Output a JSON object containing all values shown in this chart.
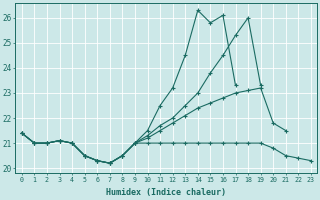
{
  "xlabel": "Humidex (Indice chaleur)",
  "background_color": "#cce8e8",
  "grid_color": "#ffffff",
  "line_color": "#1a6b62",
  "xlim": [
    -0.5,
    23.5
  ],
  "ylim": [
    19.8,
    26.6
  ],
  "xticks": [
    0,
    1,
    2,
    3,
    4,
    5,
    6,
    7,
    8,
    9,
    10,
    11,
    12,
    13,
    14,
    15,
    16,
    17,
    18,
    19,
    20,
    21,
    22,
    23
  ],
  "yticks": [
    20,
    21,
    22,
    23,
    24,
    25,
    26
  ],
  "series": {
    "line1": [
      21.4,
      21.0,
      21.0,
      21.1,
      21.0,
      20.5,
      20.3,
      20.2,
      20.5,
      21.0,
      21.5,
      22.5,
      23.2,
      24.5,
      26.3,
      25.8,
      26.1,
      23.3,
      null,
      null,
      null,
      null,
      null,
      null
    ],
    "line2": [
      21.4,
      21.0,
      21.0,
      21.1,
      21.0,
      20.5,
      20.3,
      20.2,
      20.5,
      21.0,
      21.3,
      21.7,
      22.0,
      22.5,
      23.0,
      23.8,
      24.5,
      25.3,
      26.0,
      23.3,
      null,
      null,
      null,
      null
    ],
    "line3": [
      21.4,
      21.0,
      21.0,
      21.1,
      21.0,
      20.5,
      20.3,
      20.2,
      20.5,
      21.0,
      21.2,
      21.5,
      21.8,
      22.1,
      22.4,
      22.6,
      22.8,
      23.0,
      23.1,
      23.2,
      21.8,
      21.5,
      null,
      null
    ],
    "line4": [
      21.4,
      21.0,
      21.0,
      21.1,
      21.0,
      20.5,
      20.3,
      20.2,
      20.5,
      21.0,
      21.0,
      21.0,
      21.0,
      21.0,
      21.0,
      21.0,
      21.0,
      21.0,
      21.0,
      21.0,
      20.8,
      20.5,
      20.4,
      20.3
    ]
  }
}
